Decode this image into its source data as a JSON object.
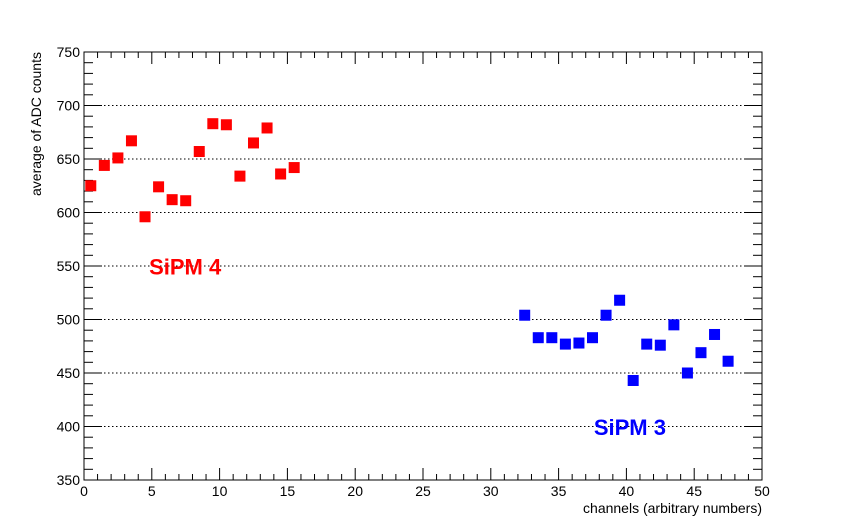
{
  "chart_data": {
    "type": "scatter",
    "title": "",
    "xlabel": "channels (arbitrary numbers)",
    "ylabel": "average of ADC counts",
    "xlim": [
      0,
      50
    ],
    "ylim": [
      350,
      750
    ],
    "x_ticks": [
      0,
      5,
      10,
      15,
      20,
      25,
      30,
      35,
      40,
      45,
      50
    ],
    "y_ticks": [
      350,
      400,
      450,
      500,
      550,
      600,
      650,
      700,
      750
    ],
    "grid": "horizontal dotted",
    "marker": "square",
    "series": [
      {
        "color": "#ff0000",
        "x": [
          0.5,
          1.5,
          2.5,
          3.5,
          4.5,
          5.5,
          6.5,
          7.5,
          8.5,
          9.5,
          10.5,
          11.5,
          12.5,
          13.5,
          14.5,
          15.5
        ],
        "y": [
          625,
          644,
          651,
          667,
          596,
          624,
          612,
          611,
          657,
          683,
          682,
          634,
          665,
          679,
          636,
          642
        ]
      },
      {
        "color": "#0000ff",
        "x": [
          32.5,
          33.5,
          34.5,
          35.5,
          36.5,
          37.5,
          38.5,
          39.5,
          40.5,
          41.5,
          42.5,
          43.5,
          44.5,
          45.5,
          46.5,
          47.5
        ],
        "y": [
          504,
          483,
          483,
          477,
          478,
          483,
          504,
          518,
          443,
          477,
          476,
          495,
          450,
          469,
          486,
          461
        ]
      }
    ],
    "annotations": [
      {
        "text": "SiPM 4",
        "x": 4.8,
        "y": 542,
        "color": "#ff0000"
      },
      {
        "text": "SiPM 3",
        "x": 37.6,
        "y": 392,
        "color": "#0000ff"
      }
    ]
  }
}
